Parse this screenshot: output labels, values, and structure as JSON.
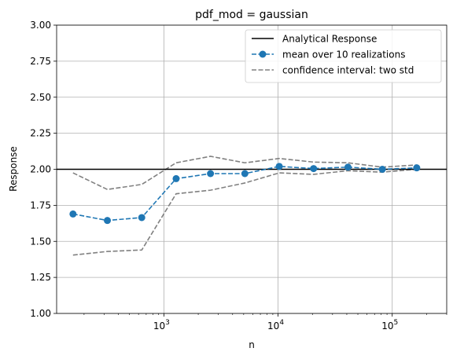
{
  "chart_data": {
    "type": "line",
    "title": "pdf_mod = gaussian",
    "xlabel": "n",
    "ylabel": "Response",
    "xscale": "log",
    "xlim": [
      115,
      300000
    ],
    "ylim": [
      1.0,
      3.0
    ],
    "grid": true,
    "legend_position": "top-right",
    "x_ticks": [
      {
        "value": 1000,
        "base": "10",
        "exp": "3"
      },
      {
        "value": 10000,
        "base": "10",
        "exp": "4"
      },
      {
        "value": 100000,
        "base": "10",
        "exp": "5"
      }
    ],
    "y_ticks": [
      "1.00",
      "1.25",
      "1.50",
      "1.75",
      "2.00",
      "2.25",
      "2.50",
      "2.75",
      "3.00"
    ],
    "x": [
      160,
      320,
      640,
      1280,
      2560,
      5120,
      10240,
      20480,
      40960,
      81920,
      163840
    ],
    "series": [
      {
        "name": "Analytical Response",
        "kind": "hline",
        "value": 2.0,
        "color": "#000000",
        "style": "solid"
      },
      {
        "name": "mean over 10 realizations",
        "kind": "line",
        "color": "#1f77b4",
        "style": "dashed-marker",
        "values": [
          1.69,
          1.645,
          1.665,
          1.935,
          1.97,
          1.97,
          2.02,
          2.005,
          2.015,
          2.0,
          2.01
        ]
      },
      {
        "name": "confidence interval: two std",
        "kind": "band",
        "color": "#808080",
        "style": "dashed",
        "upper": [
          1.975,
          1.86,
          1.895,
          2.045,
          2.09,
          2.045,
          2.075,
          2.05,
          2.045,
          2.015,
          2.03
        ],
        "lower": [
          1.405,
          1.43,
          1.44,
          1.83,
          1.855,
          1.905,
          1.975,
          1.965,
          1.99,
          1.98,
          2.0
        ]
      }
    ]
  }
}
